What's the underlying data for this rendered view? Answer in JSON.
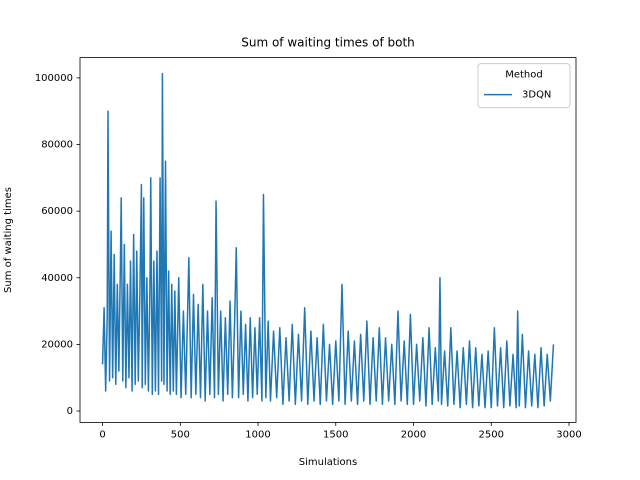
{
  "chart_data": {
    "type": "line",
    "title": "Sum of waiting times of both",
    "xlabel": "Simulations",
    "ylabel": "Sum of waiting times",
    "x": [
      0,
      10,
      20,
      30,
      35,
      45,
      55,
      65,
      75,
      85,
      95,
      105,
      115,
      120,
      130,
      140,
      150,
      160,
      170,
      180,
      190,
      200,
      210,
      220,
      230,
      240,
      250,
      255,
      265,
      275,
      285,
      295,
      305,
      310,
      320,
      330,
      340,
      350,
      360,
      370,
      380,
      385,
      395,
      405,
      415,
      425,
      435,
      445,
      455,
      465,
      475,
      490,
      505,
      520,
      535,
      555,
      570,
      585,
      600,
      615,
      630,
      645,
      660,
      675,
      690,
      705,
      720,
      730,
      745,
      760,
      775,
      790,
      805,
      820,
      835,
      850,
      860,
      875,
      890,
      905,
      920,
      935,
      950,
      965,
      980,
      995,
      1010,
      1025,
      1035,
      1050,
      1065,
      1080,
      1100,
      1120,
      1140,
      1160,
      1180,
      1200,
      1220,
      1240,
      1260,
      1280,
      1300,
      1320,
      1340,
      1360,
      1380,
      1400,
      1420,
      1440,
      1460,
      1480,
      1500,
      1520,
      1540,
      1560,
      1580,
      1600,
      1620,
      1640,
      1660,
      1680,
      1700,
      1720,
      1740,
      1760,
      1780,
      1800,
      1820,
      1840,
      1860,
      1880,
      1900,
      1920,
      1940,
      1960,
      1980,
      2000,
      2020,
      2040,
      2060,
      2080,
      2100,
      2120,
      2140,
      2160,
      2170,
      2180,
      2200,
      2220,
      2240,
      2260,
      2280,
      2300,
      2320,
      2340,
      2360,
      2380,
      2400,
      2420,
      2440,
      2460,
      2480,
      2500,
      2520,
      2540,
      2560,
      2580,
      2600,
      2620,
      2640,
      2660,
      2670,
      2680,
      2700,
      2720,
      2740,
      2760,
      2780,
      2800,
      2820,
      2840,
      2860,
      2880,
      2900
    ],
    "series": [
      {
        "name": "3DQN",
        "color": "#1f77b4",
        "values": [
          14000,
          31000,
          6000,
          28000,
          90000,
          9000,
          54000,
          10000,
          47000,
          8000,
          38000,
          12000,
          45000,
          64000,
          9000,
          50000,
          7000,
          38000,
          10000,
          45000,
          6000,
          53000,
          8000,
          48000,
          9000,
          35000,
          68000,
          7000,
          64000,
          8000,
          40000,
          6000,
          38000,
          70000,
          5000,
          45000,
          6000,
          48000,
          5000,
          70000,
          9000,
          101300,
          8000,
          75000,
          6000,
          42000,
          5000,
          38000,
          6000,
          36000,
          5000,
          40000,
          4000,
          30000,
          5000,
          46000,
          4000,
          35000,
          5000,
          32000,
          4000,
          38000,
          3000,
          30000,
          5000,
          34000,
          4000,
          63000,
          5000,
          30000,
          3000,
          28000,
          5000,
          33000,
          4000,
          28000,
          49000,
          4000,
          30000,
          5000,
          26000,
          3000,
          28000,
          4000,
          25000,
          5000,
          28000,
          3000,
          65000,
          4000,
          27000,
          3000,
          24000,
          4000,
          25000,
          2000,
          22000,
          3000,
          26000,
          2000,
          23000,
          3000,
          31000,
          2000,
          24000,
          3000,
          22000,
          2000,
          26000,
          3000,
          20000,
          2000,
          21000,
          3000,
          38000,
          2000,
          24000,
          3000,
          21000,
          2000,
          23000,
          3000,
          27000,
          2000,
          22000,
          3000,
          25000,
          2000,
          22000,
          3000,
          20000,
          2000,
          30000,
          3000,
          21000,
          2000,
          29000,
          2000,
          20000,
          3000,
          22000,
          1500,
          25000,
          2000,
          19000,
          3000,
          40000,
          2000,
          18000,
          1500,
          25000,
          2000,
          18000,
          1000,
          19000,
          2000,
          21000,
          1000,
          19000,
          1500,
          17000,
          1000,
          18000,
          1000,
          25000,
          1500,
          19000,
          1000,
          21000,
          1500,
          17000,
          1000,
          30000,
          1500,
          23000,
          1000,
          18000,
          1500,
          17000,
          1000,
          19000,
          1500,
          17000,
          3000,
          20000
        ]
      }
    ],
    "xlim": [
      -145,
      3045
    ],
    "ylim": [
      -3420,
      106100
    ],
    "xticks": [
      0,
      500,
      1000,
      1500,
      2000,
      2500,
      3000
    ],
    "yticks": [
      0,
      20000,
      40000,
      60000,
      80000,
      100000
    ],
    "grid": false,
    "legend": {
      "title": "Method",
      "loc": "upper right"
    }
  }
}
